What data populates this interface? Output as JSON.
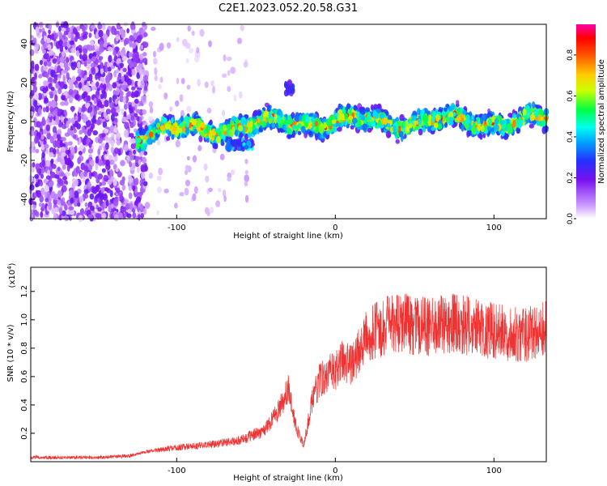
{
  "title": "C2E1.2023.052.20.58.G31",
  "colors": {
    "snr_line": "#ee3333",
    "axis": "#000000",
    "background": "#ffffff"
  },
  "chart_data": [
    {
      "type": "heatmap",
      "xlabel": "Height of straight line (km)",
      "ylabel": "Frequency (Hz)",
      "xlim": [
        -192,
        133
      ],
      "ylim": [
        -50,
        50
      ],
      "xticks": [
        -100,
        0,
        100
      ],
      "xtick_labels": [
        "-100",
        "0",
        "100"
      ],
      "yticks": [
        -40,
        -20,
        0,
        20,
        40
      ],
      "ytick_labels": [
        "-40",
        "-20",
        "0",
        "20",
        "40"
      ],
      "colorbar": {
        "label": "Normalized spectral amplitude",
        "range": [
          0,
          0.95
        ],
        "ticks": [
          0.0,
          0.2,
          0.4,
          0.6,
          0.8
        ],
        "tick_labels": [
          "0.0",
          "0.2",
          "0.4",
          "0.6",
          "0.8"
        ],
        "colormap": "rainbow (purple-blue-cyan-green-yellow-orange-red-magenta)"
      },
      "features": [
        {
          "name": "broadband noise",
          "x_range": [
            -192,
            -125
          ],
          "y_range": [
            -50,
            50
          ],
          "amplitude": 0.1
        },
        {
          "name": "main signal band",
          "x_range": [
            -125,
            133
          ],
          "y_center": 0,
          "y_halfwidth": 5,
          "peak_amplitude": 0.8
        },
        {
          "name": "secondary feature",
          "x_range": [
            -68,
            -52
          ],
          "y_center": -12,
          "amplitude": 0.35
        },
        {
          "name": "isolated blob",
          "x": -29,
          "y": 17,
          "amplitude": 0.3
        }
      ]
    },
    {
      "type": "line",
      "xlabel": "Height of straight line (km)",
      "ylabel": "SNR (10 * v/v)",
      "multiplier": "(x10",
      "multiplier_exp": "4",
      "multiplier_close": ")",
      "xlim": [
        -192,
        133
      ],
      "ylim": [
        0,
        1.37
      ],
      "xticks": [
        -100,
        0,
        100
      ],
      "xtick_labels": [
        "-100",
        "0",
        "100"
      ],
      "yticks": [
        0.2,
        0.4,
        0.6,
        0.8,
        1.0,
        1.2
      ],
      "ytick_labels": [
        "0.2",
        "0.4",
        "0.6",
        "0.8",
        "1.0",
        "1.2"
      ],
      "series": [
        {
          "x": [
            -192,
            -150,
            -130,
            -120,
            -100,
            -80,
            -60,
            -45,
            -35,
            -30,
            -25,
            -20,
            -15,
            -10,
            -5,
            0,
            5,
            10,
            15,
            20,
            30,
            40,
            50,
            60,
            70,
            80,
            90,
            100,
            110,
            120,
            133
          ],
          "y": [
            0.03,
            0.03,
            0.04,
            0.07,
            0.1,
            0.12,
            0.15,
            0.22,
            0.38,
            0.52,
            0.25,
            0.12,
            0.4,
            0.58,
            0.62,
            0.63,
            0.72,
            0.68,
            0.78,
            0.88,
            0.95,
            0.98,
            0.96,
            0.95,
            0.98,
            0.97,
            0.94,
            0.92,
            0.9,
            0.9,
            0.93
          ]
        }
      ]
    }
  ]
}
